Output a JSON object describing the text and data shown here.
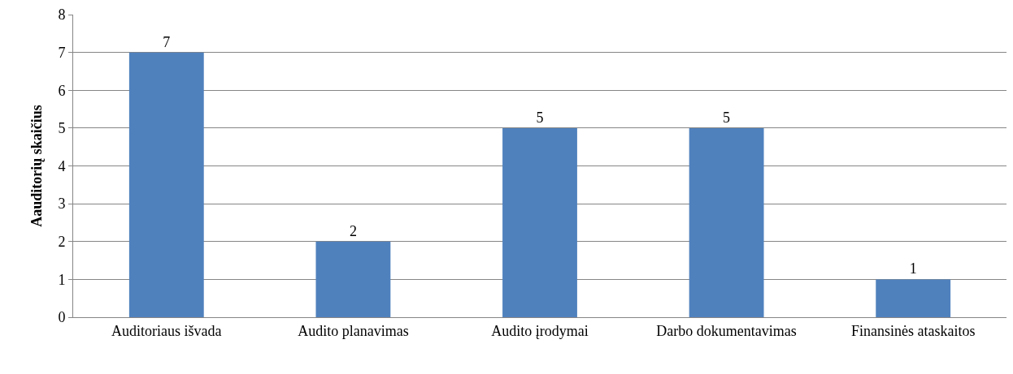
{
  "chart_data": {
    "type": "bar",
    "ylabel": "Aauditorių skaičius",
    "categories": [
      "Auditoriaus išvada",
      "Audito planavimas",
      "Audito įrodymai",
      "Darbo dokumentavimas",
      "Finansinės ataskaitos"
    ],
    "values": [
      7,
      2,
      5,
      5,
      1
    ],
    "color": "#4f81bd",
    "ylim": [
      0,
      8
    ],
    "yticks": [
      0,
      1,
      2,
      3,
      4,
      5,
      6,
      7,
      8
    ],
    "grid": "y",
    "data_labels": true
  }
}
